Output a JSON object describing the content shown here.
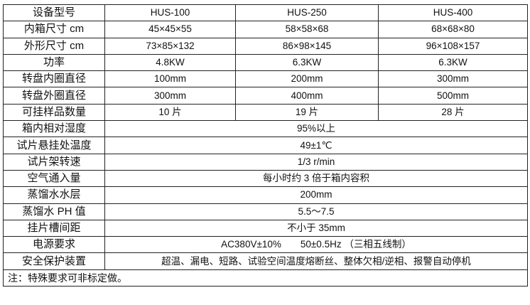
{
  "header": {
    "label": "设备型号",
    "models": [
      "HUS-100",
      "HUS-250",
      "HUS-400"
    ]
  },
  "model_rows": [
    {
      "label": "内箱尺寸 cm",
      "values": [
        "45×45×55",
        "58×58×68",
        "68×68×80"
      ]
    },
    {
      "label": "外形尺寸 cm",
      "values": [
        "73×85×132",
        "86×98×145",
        "96×108×157"
      ]
    },
    {
      "label": "功率",
      "values": [
        "4.8KW",
        "6.3KW",
        "6.3KW"
      ]
    },
    {
      "label": "转盘内圈直径",
      "values": [
        "100mm",
        "200mm",
        "300mm"
      ]
    },
    {
      "label": "转盘外圈直径",
      "values": [
        "300mm",
        "400mm",
        "500mm"
      ]
    },
    {
      "label": "可挂样品数量",
      "values": [
        "10 片",
        "19 片",
        "28 片"
      ]
    }
  ],
  "common_rows": [
    {
      "label": "箱内相对湿度",
      "value": "95%以上"
    },
    {
      "label": "试片悬挂处温度",
      "value": "49±1℃"
    },
    {
      "label": "试片架转速",
      "value": "1/3 r/min"
    },
    {
      "label": "空气通入量",
      "value": "每小时约 3 倍于箱内容积"
    },
    {
      "label": "蒸馏水水层",
      "value": "200mm"
    },
    {
      "label": "蒸馏水 PH 值",
      "value": "5.5～7.5"
    },
    {
      "label": "挂片槽间距",
      "value": "不小于 35mm"
    },
    {
      "label": "电源要求",
      "value": "AC380V±10%　　50±0.5Hz （三相五线制）"
    },
    {
      "label": "安全保护装置",
      "value": "超温、漏电、短路、试验空间温度熔断丝、整体欠相/逆相、报警自动停机"
    }
  ],
  "note": "注：特殊要求可非标定做。"
}
